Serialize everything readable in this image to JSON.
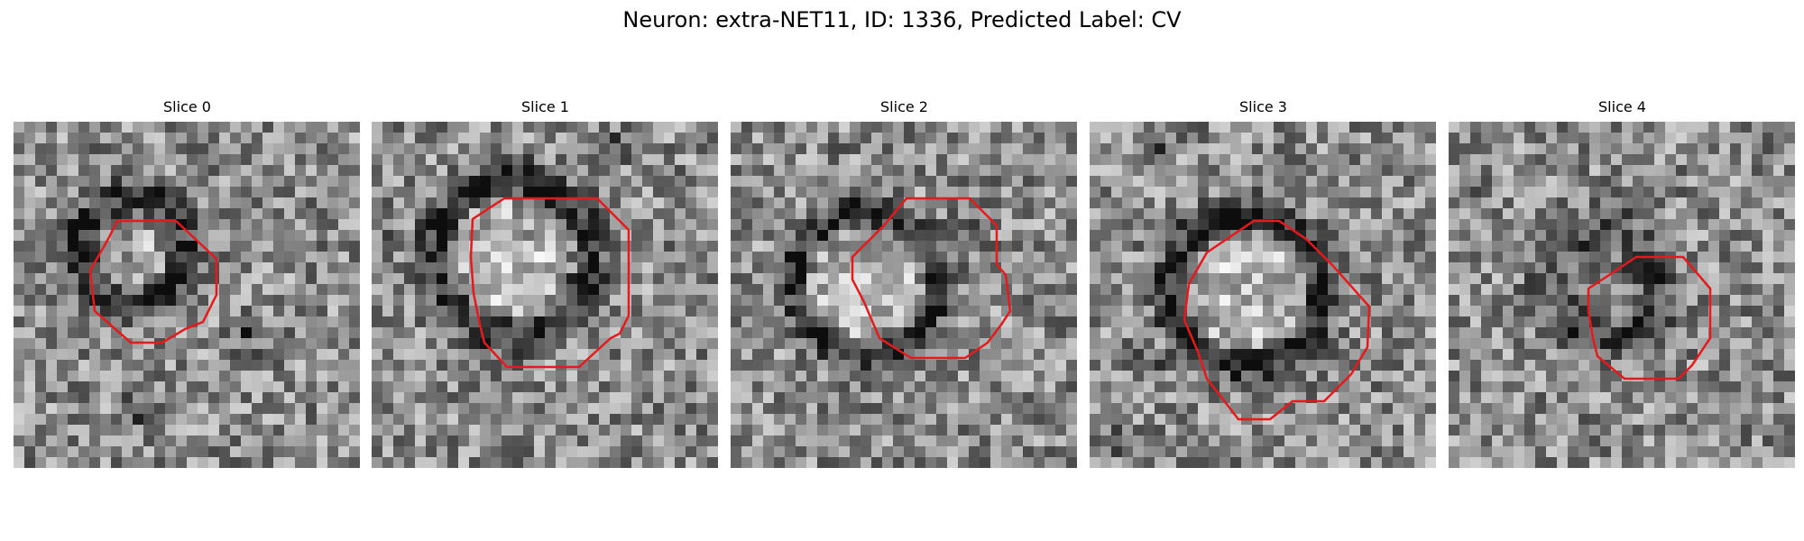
{
  "figure": {
    "title": "Neuron: extra-NET11, ID: 1336, Predicted Label: CV"
  },
  "slices": [
    {
      "label": "Slice 0"
    },
    {
      "label": "Slice 1"
    },
    {
      "label": "Slice 2"
    },
    {
      "label": "Slice 3"
    },
    {
      "label": "Slice 4"
    }
  ],
  "colors": {
    "contour": "#e41a1c",
    "background": "#ffffff"
  }
}
